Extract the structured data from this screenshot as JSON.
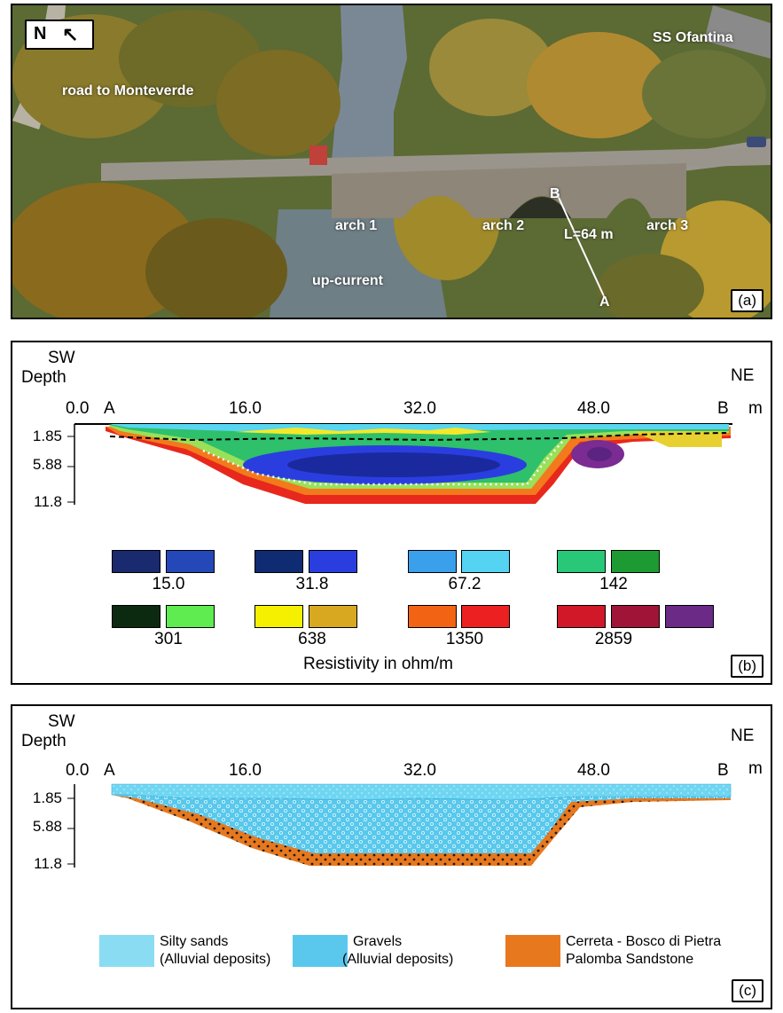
{
  "panel_a": {
    "north_label": "N",
    "labels": {
      "road": "road to Monteverde",
      "ss": "SS Ofantina",
      "arch1": "arch 1",
      "arch2": "arch 2",
      "arch3": "arch 3",
      "upcurrent": "up-current",
      "length": "L=64 m",
      "point_a": "A",
      "point_b": "B"
    },
    "tag": "(a)"
  },
  "panel_b": {
    "sw": "SW",
    "depth_label": "Depth",
    "ne": "NE",
    "unit": "m",
    "x_ticks": [
      "0.0",
      "16.0",
      "32.0",
      "48.0"
    ],
    "end_a": "A",
    "end_b": "B",
    "depth_ticks": [
      "1.85",
      "5.88",
      "11.8"
    ],
    "legend_rows": [
      {
        "values": [
          "15.0",
          "31.8",
          "67.2",
          "142"
        ],
        "groups": [
          [
            "#1a2a6e",
            "#2448b8"
          ],
          [
            "#0f2c72",
            "#2a3ee0"
          ],
          [
            "#3aa0ec",
            "#54d4f2"
          ],
          [
            "#28c878",
            "#1e9a32"
          ]
        ]
      },
      {
        "values": [
          "301",
          "638",
          "1350",
          "2859"
        ],
        "groups": [
          [
            "#0c2a10",
            "#5eec50"
          ],
          [
            "#f4f000",
            "#d8a820"
          ],
          [
            "#f26414",
            "#ec2020"
          ],
          [
            "#d01828",
            "#a01438",
            "#6a2a86"
          ]
        ]
      }
    ],
    "legend_title": "Resistivity in ohm/m",
    "tag": "(b)"
  },
  "panel_c": {
    "sw": "SW",
    "depth_label": "Depth",
    "ne": "NE",
    "unit": "m",
    "x_ticks": [
      "0.0",
      "16.0",
      "32.0",
      "48.0"
    ],
    "end_a": "A",
    "end_b": "B",
    "depth_ticks": [
      "1.85",
      "5.88",
      "11.8"
    ],
    "legend": [
      {
        "line1": "Silty sands",
        "line2": "(Alluvial deposits)"
      },
      {
        "line1": "Gravels",
        "line2": "(Alluvial deposits)"
      },
      {
        "line1": "Cerreta - Bosco di Pietra",
        "line2": "Palomba Sandstone"
      }
    ],
    "tag": "(c)"
  }
}
